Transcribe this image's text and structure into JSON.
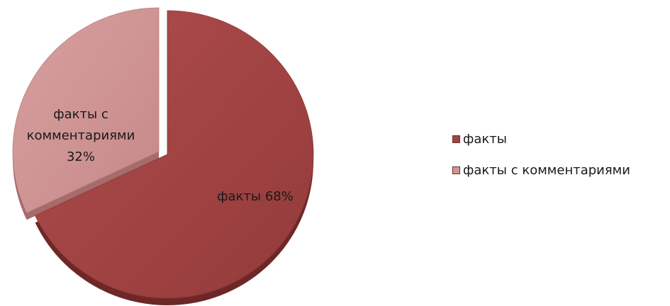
{
  "chart_data": {
    "type": "pie",
    "title": "",
    "exploded": true,
    "style": "3d",
    "legend_position": "right",
    "slices": [
      {
        "name": "факты",
        "value": 68,
        "label": "факты  68%",
        "color": "#a04444"
      },
      {
        "name": "факты с комментариями",
        "value": 32,
        "label_lines": [
          "факты с",
          "комментариями",
          "32%"
        ],
        "color": "#cf9494"
      }
    ]
  }
}
